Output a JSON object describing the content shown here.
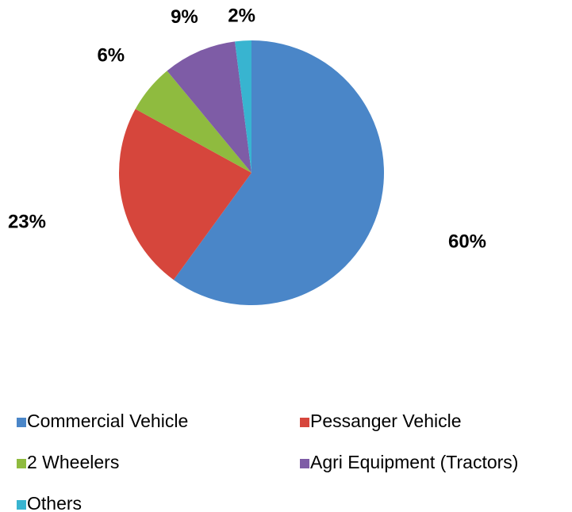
{
  "chart_data": {
    "type": "pie",
    "categories": [
      "Commercial Vehicle",
      "Pessanger Vehicle",
      "2 Wheelers",
      "Agri Equipment (Tractors)",
      "Others"
    ],
    "values": [
      60,
      23,
      6,
      9,
      2
    ],
    "value_labels": [
      "60%",
      "23%",
      "6%",
      "9%",
      "2%"
    ],
    "colors": [
      "#4a86c8",
      "#d6463c",
      "#8fbb3f",
      "#7e5ca6",
      "#38b4d0"
    ],
    "legend": "bottom"
  }
}
